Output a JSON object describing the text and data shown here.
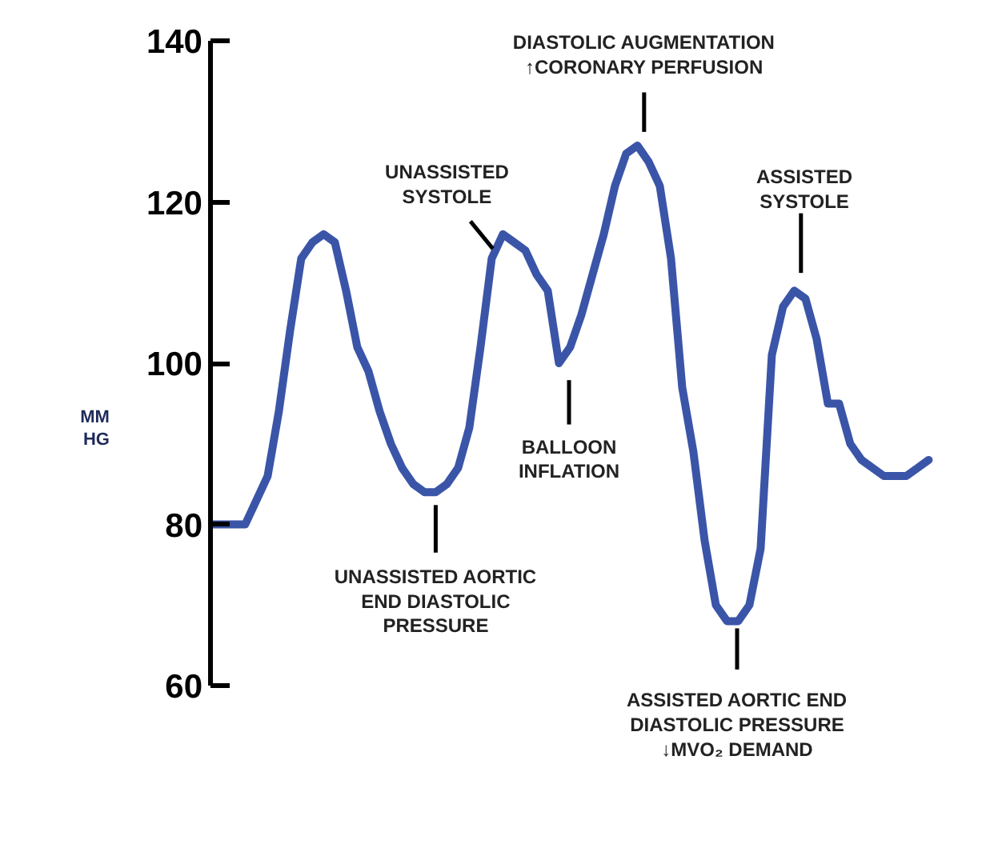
{
  "chart_data": {
    "type": "line",
    "ylabel": "MM\nHG",
    "categories": [
      null,
      null,
      null,
      null,
      null,
      null,
      null,
      null,
      null,
      null,
      null,
      null,
      null,
      null,
      null,
      null,
      null,
      null,
      null,
      null,
      null,
      null,
      null,
      null,
      null,
      null,
      null,
      null,
      null,
      null,
      null,
      null,
      null,
      null,
      null,
      null,
      null,
      null,
      null,
      null,
      null,
      null,
      null,
      null,
      null,
      null,
      null,
      null,
      null,
      null,
      null,
      null,
      null,
      null,
      null,
      null,
      null,
      null,
      null,
      null,
      null,
      null,
      null,
      null,
      null
    ],
    "series": [
      {
        "color": "#3a55a8",
        "values": [
          80,
          80,
          80,
          80,
          83,
          86,
          94,
          104,
          113,
          115,
          116,
          115,
          109,
          102,
          99,
          94,
          90,
          87,
          85,
          84,
          84,
          85,
          87,
          92,
          102,
          113,
          116,
          115,
          114,
          111,
          109,
          100,
          102,
          106,
          111,
          116,
          122,
          126,
          127,
          125,
          122,
          113,
          97,
          89,
          78,
          70,
          68,
          68,
          70,
          77,
          101,
          107,
          109,
          108,
          103,
          95,
          95,
          90,
          88,
          87,
          86,
          86,
          86,
          87,
          88
        ]
      }
    ],
    "ylim": [
      60,
      140
    ],
    "yticks": [
      60,
      80,
      100,
      120,
      140
    ],
    "tick_labels": "y",
    "grid": false,
    "marker": "none",
    "line_style": "solid",
    "annotations": [
      "DIASTOLIC AUGMENTATION\n↑CORONARY PERFUSION",
      "UNASSISTED\nSYSTOLE",
      "ASSISTED\nSYSTOLE",
      "BALLOON\nINFLATION",
      "UNASSISTED AORTIC\nEND DIASTOLIC\nPRESSURE",
      "ASSISTED AORTIC END\nDIASTOLIC PRESSURE\n↓MVO₂ DEMAND"
    ]
  }
}
